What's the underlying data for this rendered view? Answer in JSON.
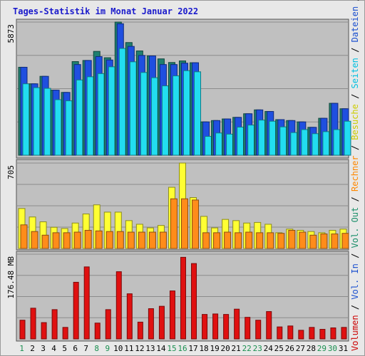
{
  "chart_data": {
    "type": "bar",
    "title": "Tages-Statistik im Monat Januar 2022",
    "categories": [
      "1",
      "2",
      "3",
      "4",
      "5",
      "6",
      "7",
      "8",
      "9",
      "10",
      "11",
      "12",
      "13",
      "14",
      "15",
      "16",
      "17",
      "18",
      "19",
      "20",
      "21",
      "22",
      "23",
      "24",
      "25",
      "26",
      "27",
      "28",
      "29",
      "30",
      "31"
    ],
    "weekend_days": [
      "1",
      "8",
      "9",
      "15",
      "16",
      "22",
      "23",
      "29",
      "30"
    ],
    "panels": [
      {
        "id": "top",
        "ymax_label": "5873",
        "ymax": 5873,
        "series": [
          {
            "name": "Anfragen",
            "color": "#1f7f6f",
            "values": [
              3880,
              3150,
              3480,
              2870,
              2770,
              4130,
              4180,
              4580,
              4300,
              5873,
              4970,
              4600,
              4380,
              4250,
              4090,
              4160,
              4080,
              1470,
              1530,
              1600,
              1670,
              1830,
              2000,
              1930,
              1570,
              1530,
              1470,
              1230,
              1630,
              2290,
              2050
            ]
          },
          {
            "name": "Dateien",
            "color": "#1f4fe0",
            "values": [
              3880,
              3150,
              3480,
              2870,
              2770,
              4000,
              4180,
              4350,
              4200,
              5800,
              4800,
              4400,
              4380,
              4000,
              4000,
              4060,
              4080,
              1470,
              1530,
              1600,
              1670,
              1830,
              2000,
              1930,
              1570,
              1530,
              1470,
              1230,
              1630,
              2290,
              2050
            ]
          },
          {
            "name": "Seiten",
            "color": "#22ddf0",
            "values": [
              3150,
              2980,
              2950,
              2450,
              2400,
              3320,
              3460,
              3600,
              3900,
              4710,
              4120,
              3650,
              3420,
              3060,
              3500,
              3730,
              3680,
              830,
              980,
              930,
              1240,
              1330,
              1550,
              1500,
              1250,
              1000,
              1130,
              950,
              1040,
              1130,
              1500
            ]
          }
        ]
      },
      {
        "id": "middle",
        "ymax_label": "705",
        "ymax": 705,
        "series": [
          {
            "name": "Besuche",
            "color": "#ffff33",
            "values": [
              330,
              260,
              220,
              175,
              165,
              210,
              285,
              360,
              300,
              300,
              230,
              200,
              170,
              190,
              505,
              705,
              420,
              265,
              170,
              240,
              230,
              210,
              215,
              200,
              130,
              160,
              150,
              140,
              130,
              150,
              160
            ]
          },
          {
            "name": "Rechner",
            "color": "#ff8c1a",
            "values": [
              195,
              140,
              110,
              130,
              130,
              135,
              150,
              145,
              140,
              140,
              135,
              135,
              135,
              135,
              410,
              410,
              400,
              130,
              130,
              135,
              130,
              135,
              130,
              130,
              125,
              150,
              135,
              110,
              120,
              120,
              125
            ]
          }
        ]
      },
      {
        "id": "bottom",
        "ymax_label": "176.48 MB",
        "ymax": 176.48,
        "series": [
          {
            "name": "Volumen",
            "color": "#e01010",
            "values": [
              39,
              64,
              34,
              61,
              24,
              118,
              150,
              33,
              61,
              140,
              94,
              35,
              63,
              68,
              100,
              170,
              157,
              51,
              52,
              51,
              62,
              45,
              39,
              57,
              25,
              27,
              18,
              24,
              20,
              23,
              24
            ]
          }
        ]
      }
    ],
    "right_legend": [
      {
        "text": "Volumen",
        "color": "#cc0000"
      },
      {
        "text": " / ",
        "color": "#000000"
      },
      {
        "text": "Vol. In",
        "color": "#1a4fcf"
      },
      {
        "text": " / ",
        "color": "#000000"
      },
      {
        "text": "Vol. Out",
        "color": "#1a8f6a"
      },
      {
        "text": " / ",
        "color": "#000000"
      },
      {
        "text": "Rechner",
        "color": "#ff8800"
      },
      {
        "text": " / ",
        "color": "#000000"
      },
      {
        "text": "Besuche",
        "color": "#cccc00"
      },
      {
        "text": " / ",
        "color": "#000000"
      },
      {
        "text": "Seiten",
        "color": "#00c0e0"
      },
      {
        "text": " / ",
        "color": "#000000"
      },
      {
        "text": "Dateien",
        "color": "#1a4fcf"
      },
      {
        "text": " / ",
        "color": "#000000"
      },
      {
        "text": "Anfragen",
        "color": "#1a8f6a"
      }
    ],
    "grid": true,
    "colors": {
      "background": "#e8e8e8",
      "plot_background": "#c0c0c0",
      "title": "#1a1acc",
      "weekday_label": "#000000",
      "weekend_label": "#1a8f50",
      "grid": "#8c8c8c"
    }
  }
}
